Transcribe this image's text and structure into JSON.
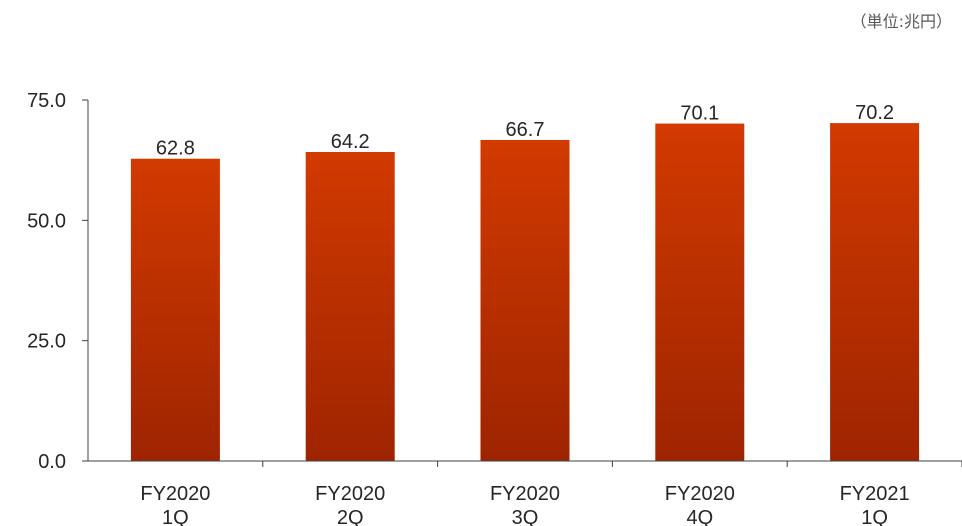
{
  "unit_note": "（単位:兆円）",
  "chart_data": {
    "type": "bar",
    "categories": [
      [
        "FY2020",
        "1Q"
      ],
      [
        "FY2020",
        "2Q"
      ],
      [
        "FY2020",
        "3Q"
      ],
      [
        "FY2020",
        "4Q"
      ],
      [
        "FY2021",
        "1Q"
      ]
    ],
    "values": [
      62.8,
      64.2,
      66.7,
      70.1,
      70.2
    ],
    "value_labels": [
      "62.8",
      "64.2",
      "66.7",
      "70.1",
      "70.2"
    ],
    "ylim": [
      0,
      75
    ],
    "yticks": [
      0,
      25,
      50,
      75
    ],
    "ytick_labels": [
      "0.0",
      "25.0",
      "50.0",
      "75.0"
    ],
    "grid": false,
    "colors": {
      "bar_top": "#d23a00",
      "bar_bottom": "#9e2400",
      "axis": "#404040",
      "text": "#262626"
    }
  }
}
